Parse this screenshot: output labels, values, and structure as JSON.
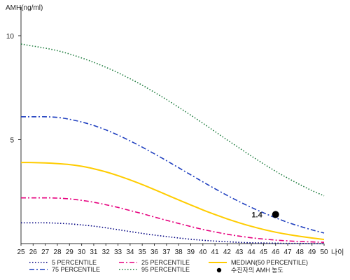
{
  "chart_data": {
    "type": "line",
    "title": "",
    "ylabel": "AMH(ng/ml)",
    "xlabel": "나이",
    "xlim": [
      25,
      50
    ],
    "ylim": [
      0,
      11
    ],
    "x_ticks": [
      "25",
      "26",
      "27",
      "28",
      "29",
      "30",
      "31",
      "32",
      "33",
      "34",
      "35",
      "36",
      "37",
      "38",
      "39",
      "40",
      "41",
      "42",
      "43",
      "44",
      "45",
      "46",
      "47",
      "48",
      "49",
      "50"
    ],
    "y_ticks": [
      "5",
      "10"
    ],
    "grid": false,
    "x": [
      25,
      26,
      27,
      28,
      29,
      30,
      31,
      32,
      33,
      34,
      35,
      36,
      37,
      38,
      39,
      40,
      41,
      42,
      43,
      44,
      45,
      46,
      47,
      48,
      49,
      50
    ],
    "series": [
      {
        "name": "5 PERCENTILE",
        "color": "#000080",
        "dash": "dot",
        "values": [
          1.0,
          1.0,
          1.0,
          0.98,
          0.95,
          0.9,
          0.84,
          0.76,
          0.67,
          0.58,
          0.49,
          0.41,
          0.34,
          0.27,
          0.21,
          0.16,
          0.12,
          0.09,
          0.06,
          0.04,
          0.03,
          0.02,
          0.01,
          0.01,
          0.0,
          0.0
        ]
      },
      {
        "name": "25 PERCENTILE",
        "color": "#e6007e",
        "dash": "dashdot",
        "values": [
          2.2,
          2.2,
          2.2,
          2.19,
          2.15,
          2.08,
          1.99,
          1.87,
          1.74,
          1.59,
          1.44,
          1.28,
          1.12,
          0.97,
          0.82,
          0.68,
          0.56,
          0.45,
          0.36,
          0.28,
          0.22,
          0.17,
          0.13,
          0.1,
          0.08,
          0.06
        ]
      },
      {
        "name": "MEDIAN(50 PERCENTILE)",
        "color": "#ffcc00",
        "dash": "solid",
        "values": [
          3.9,
          3.9,
          3.88,
          3.85,
          3.8,
          3.72,
          3.6,
          3.45,
          3.27,
          3.06,
          2.84,
          2.6,
          2.35,
          2.1,
          1.86,
          1.62,
          1.4,
          1.19,
          1.0,
          0.83,
          0.68,
          0.55,
          0.44,
          0.35,
          0.27,
          0.2
        ]
      },
      {
        "name": "75 PERCENTILE",
        "color": "#1f3fbf",
        "dash": "dashdot",
        "values": [
          6.1,
          6.1,
          6.1,
          6.07,
          5.98,
          5.85,
          5.68,
          5.47,
          5.22,
          4.94,
          4.64,
          4.32,
          3.99,
          3.65,
          3.31,
          2.97,
          2.64,
          2.32,
          2.02,
          1.74,
          1.48,
          1.24,
          1.02,
          0.83,
          0.66,
          0.51
        ]
      },
      {
        "name": "95 PERCENTILE",
        "color": "#1a7a3a",
        "dash": "dot",
        "values": [
          9.6,
          9.5,
          9.4,
          9.28,
          9.12,
          8.93,
          8.72,
          8.48,
          8.22,
          7.93,
          7.62,
          7.28,
          6.93,
          6.56,
          6.18,
          5.79,
          5.39,
          4.99,
          4.6,
          4.21,
          3.84,
          3.48,
          3.15,
          2.84,
          2.55,
          2.3
        ]
      }
    ],
    "point": {
      "name": "수진자의 AMH 농도",
      "x": 46,
      "y": 1.4,
      "label": "1.4"
    },
    "legend_position": "bottom"
  }
}
